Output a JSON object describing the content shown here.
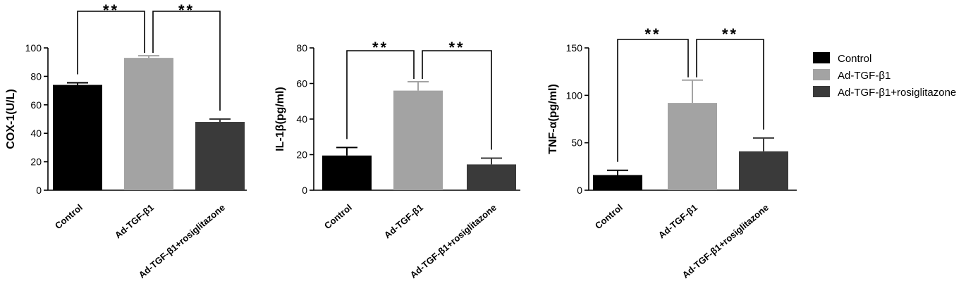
{
  "legend": [
    {
      "label": "Control",
      "color": "#000000"
    },
    {
      "label": "Ad-TGF-β1",
      "color": "#a3a3a3"
    },
    {
      "label": "Ad-TGF-β1+rosiglitazone",
      "color": "#3a3a3a"
    }
  ],
  "chart_data": [
    {
      "type": "bar",
      "ylabel": "COX-1(U/L)",
      "ylim": [
        0,
        100
      ],
      "yticks": [
        "0",
        "20",
        "40",
        "60",
        "80",
        "100"
      ],
      "categories": [
        "Control",
        "Ad-TGF-β1",
        "Ad-TGF-β1+rosiglitazone"
      ],
      "values": [
        74,
        93,
        48
      ],
      "errors": [
        1.5,
        1.5,
        2
      ],
      "significance": [
        {
          "between": [
            0,
            1
          ],
          "label": "**"
        },
        {
          "between": [
            1,
            2
          ],
          "label": "**"
        }
      ]
    },
    {
      "type": "bar",
      "ylabel": "IL-1β(pg/ml)",
      "ylim": [
        0,
        80
      ],
      "yticks": [
        "0",
        "20",
        "40",
        "60",
        "80"
      ],
      "categories": [
        "Control",
        "Ad-TGF-β1",
        "Ad-TGF-β1+rosiglitazone"
      ],
      "values": [
        19.5,
        56,
        14.5
      ],
      "errors": [
        4.5,
        5,
        3.5
      ],
      "significance": [
        {
          "between": [
            0,
            1
          ],
          "label": "**"
        },
        {
          "between": [
            1,
            2
          ],
          "label": "**"
        }
      ]
    },
    {
      "type": "bar",
      "ylabel": "TNF-α(pg/ml)",
      "ylim": [
        0,
        150
      ],
      "yticks": [
        "0",
        "50",
        "100",
        "150"
      ],
      "categories": [
        "Control",
        "Ad-TGF-β1",
        "Ad-TGF-β1+rosiglitazone"
      ],
      "values": [
        16,
        92,
        41
      ],
      "errors": [
        5,
        24,
        14
      ],
      "significance": [
        {
          "between": [
            0,
            1
          ],
          "label": "**"
        },
        {
          "between": [
            1,
            2
          ],
          "label": "**"
        }
      ]
    }
  ]
}
